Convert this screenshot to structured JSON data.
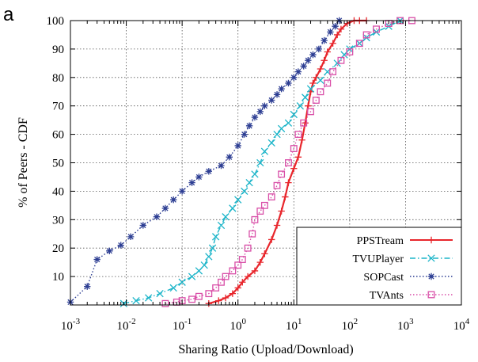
{
  "panel_label": "a",
  "chart_data": {
    "type": "line",
    "title": "",
    "xlabel": "Sharing Ratio (Upload/Download)",
    "ylabel": "% of Peers - CDF",
    "xscale": "log",
    "xlim": [
      0.001,
      10000
    ],
    "ylim": [
      0,
      100
    ],
    "x_ticks": [
      {
        "value": 0.001,
        "base": "10",
        "exp": "-3"
      },
      {
        "value": 0.01,
        "base": "10",
        "exp": "-2"
      },
      {
        "value": 0.1,
        "base": "10",
        "exp": "-1"
      },
      {
        "value": 1,
        "base": "10",
        "exp": "0"
      },
      {
        "value": 10,
        "base": "10",
        "exp": "1"
      },
      {
        "value": 100,
        "base": "10",
        "exp": "2"
      },
      {
        "value": 1000,
        "base": "10",
        "exp": "3"
      },
      {
        "value": 10000,
        "base": "10",
        "exp": "4"
      }
    ],
    "y_ticks": [
      10,
      20,
      30,
      40,
      50,
      60,
      70,
      80,
      90,
      100
    ],
    "grid": true,
    "legend_position": "bottom-right",
    "series": [
      {
        "name": "PPSTream",
        "color": "#e8262c",
        "marker": "plus",
        "dash": "solid",
        "x": [
          0.3,
          0.45,
          0.6,
          0.8,
          1.0,
          1.2,
          1.5,
          2.0,
          2.5,
          3.0,
          4.0,
          5.0,
          6.0,
          7.0,
          8.0,
          10,
          12,
          14,
          16,
          18,
          20,
          22,
          25,
          30,
          35,
          40,
          50,
          60,
          70,
          90,
          120,
          150,
          200
        ],
        "y": [
          0.5,
          1.5,
          2.5,
          4,
          6,
          8,
          10,
          12,
          15,
          18,
          23,
          28,
          33,
          38,
          43,
          48,
          52,
          58,
          64,
          70,
          75,
          78,
          80,
          83,
          86,
          89,
          92,
          95,
          97,
          99,
          100,
          100,
          100
        ]
      },
      {
        "name": "TVUPlayer",
        "color": "#1db5c9",
        "marker": "x",
        "dash": "dashdot",
        "x": [
          0.009,
          0.015,
          0.025,
          0.04,
          0.07,
          0.1,
          0.15,
          0.2,
          0.25,
          0.3,
          0.35,
          0.4,
          0.5,
          0.6,
          0.8,
          1.0,
          1.3,
          1.6,
          2.0,
          2.5,
          3.0,
          4.0,
          5.0,
          6.0,
          8.0,
          10,
          13,
          16,
          20,
          30,
          40,
          60,
          80,
          100,
          150,
          200,
          300,
          500,
          800
        ],
        "y": [
          0.5,
          1.5,
          2.5,
          4,
          6,
          8,
          10,
          12,
          14,
          17,
          20,
          24,
          28,
          31,
          34,
          37,
          40,
          43,
          46,
          50,
          54,
          57,
          60,
          62,
          64,
          67,
          70,
          73,
          76,
          79,
          82,
          85,
          88,
          90,
          92,
          94,
          96,
          98,
          100
        ]
      },
      {
        "name": "SOPCast",
        "color": "#2d3e93",
        "marker": "asterisk",
        "dash": "dotted",
        "x": [
          0.001,
          0.002,
          0.003,
          0.005,
          0.008,
          0.012,
          0.02,
          0.035,
          0.05,
          0.07,
          0.1,
          0.15,
          0.2,
          0.3,
          0.5,
          0.7,
          1.0,
          1.3,
          1.6,
          2.0,
          2.5,
          3.0,
          4.0,
          5.0,
          6.0,
          8.0,
          10,
          12,
          15,
          18,
          22,
          28,
          35,
          45,
          55,
          65
        ],
        "y": [
          1,
          6.5,
          16,
          19,
          21,
          24,
          28,
          31,
          34,
          37,
          40,
          43,
          45,
          47,
          49,
          52,
          56,
          60,
          63,
          66,
          68,
          70,
          72,
          74,
          76,
          78,
          80,
          82,
          84,
          86,
          88,
          90,
          93,
          96,
          98,
          100
        ]
      },
      {
        "name": "TVAnts",
        "color": "#d94fa8",
        "marker": "square",
        "dash": "dotted",
        "x": [
          0.05,
          0.08,
          0.1,
          0.15,
          0.2,
          0.3,
          0.4,
          0.5,
          0.6,
          0.8,
          1.0,
          1.2,
          1.5,
          1.8,
          2.0,
          2.5,
          3.0,
          4.0,
          5.0,
          6.0,
          8.0,
          10,
          12,
          15,
          20,
          25,
          30,
          40,
          50,
          70,
          100,
          150,
          200,
          300,
          500,
          800,
          1300
        ],
        "y": [
          0.5,
          1,
          1.5,
          2,
          3,
          4,
          6,
          8,
          10,
          12,
          14,
          16,
          20,
          25,
          30,
          33,
          35,
          38,
          42,
          46,
          50,
          55,
          60,
          64,
          68,
          72,
          75,
          78,
          82,
          86,
          89,
          92,
          95,
          97,
          99,
          100,
          100
        ]
      }
    ]
  }
}
